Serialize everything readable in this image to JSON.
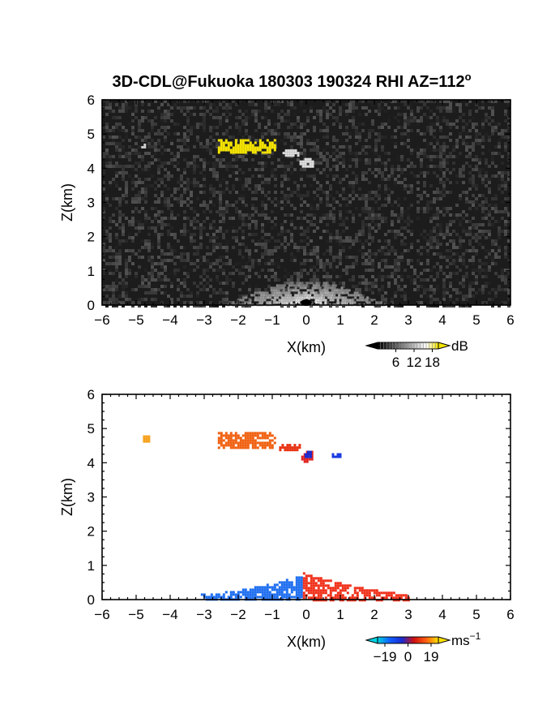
{
  "title": {
    "main": "3D-CDL@Fukuoka 180303 190324 RHI AZ=112",
    "superscript": "o"
  },
  "chart_data": [
    {
      "type": "heatmap",
      "title": "",
      "xlabel": "X(km)",
      "ylabel": "Z(km)",
      "xlim": [
        -6,
        6
      ],
      "ylim": [
        0,
        6
      ],
      "x_ticks": [
        "-6",
        "-5",
        "-4",
        "-3",
        "-2",
        "-1",
        "0",
        "1",
        "2",
        "3",
        "4",
        "5",
        "6"
      ],
      "y_ticks": [
        "0",
        "1",
        "2",
        "3",
        "4",
        "5",
        "6"
      ],
      "background": "noisy dark grey (low SNR everywhere)",
      "features": [
        {
          "kind": "strong echo",
          "color": "#f5e400",
          "x_range": [
            -2.6,
            -0.9
          ],
          "z_range": [
            4.45,
            4.85
          ]
        },
        {
          "kind": "weak echo",
          "color": "#dddddd",
          "x_range": [
            -0.7,
            -0.2
          ],
          "z_range": [
            4.4,
            4.55
          ]
        },
        {
          "kind": "weak echo",
          "color": "#e0e0e0",
          "x_range": [
            -0.2,
            0.2
          ],
          "z_range": [
            4.05,
            4.3
          ]
        },
        {
          "kind": "weak echo",
          "color": "#cfcfcf",
          "x_range": [
            -4.85,
            -4.75
          ],
          "z_range": [
            4.62,
            4.72
          ]
        },
        {
          "kind": "near-ground return",
          "color": "#e6e6e6",
          "x_range": [
            -2.4,
            2.4
          ],
          "z_range": [
            0.0,
            0.75
          ]
        }
      ],
      "colorbar": {
        "label": "dB",
        "tick_labels": [
          "6",
          "12",
          "18"
        ],
        "ticks": [
          6,
          12,
          18
        ],
        "range": [
          0,
          20
        ],
        "colors": [
          "#000000",
          "#3a3a3a",
          "#7a7a7a",
          "#bdbdbd",
          "#ffffff",
          "#f5e400"
        ]
      },
      "grid": false
    },
    {
      "type": "heatmap",
      "title": "",
      "xlabel": "X(km)",
      "ylabel": "Z(km)",
      "xlim": [
        -6,
        6
      ],
      "ylim": [
        0,
        6
      ],
      "x_ticks": [
        "-6",
        "-5",
        "-4",
        "-3",
        "-2",
        "-1",
        "0",
        "1",
        "2",
        "3",
        "4",
        "5",
        "6"
      ],
      "y_ticks": [
        "0",
        "1",
        "2",
        "3",
        "4",
        "5",
        "6"
      ],
      "background": "white (no data)",
      "features": [
        {
          "kind": "velocity cluster",
          "color": "#f5a01a",
          "x_range": [
            -4.8,
            -4.6
          ],
          "z_range": [
            4.6,
            4.8
          ]
        },
        {
          "kind": "velocity cluster",
          "color": "#f06010",
          "x_range": [
            -2.6,
            -0.9
          ],
          "z_range": [
            4.45,
            4.9
          ]
        },
        {
          "kind": "velocity cluster",
          "color": "#e83010",
          "x_range": [
            -0.8,
            -0.2
          ],
          "z_range": [
            4.4,
            4.55
          ]
        },
        {
          "kind": "velocity cluster",
          "color": "#e02020",
          "x_range": [
            -0.15,
            0.2
          ],
          "z_range": [
            4.0,
            4.35
          ]
        },
        {
          "kind": "velocity cluster",
          "color": "#1a2ad0",
          "x_range": [
            -0.05,
            0.1
          ],
          "z_range": [
            4.15,
            4.35
          ]
        },
        {
          "kind": "velocity cluster",
          "color": "#1a3ae0",
          "x_range": [
            0.75,
            1.0
          ],
          "z_range": [
            4.2,
            4.28
          ]
        },
        {
          "kind": "approaching flow",
          "color": "#1e6ef0",
          "x_range": [
            -3.1,
            -0.1
          ],
          "z_range": [
            0.0,
            0.75
          ]
        },
        {
          "kind": "receding flow",
          "color": "#f0301a",
          "x_range": [
            -0.1,
            3.0
          ],
          "z_range": [
            0.0,
            0.8
          ]
        }
      ],
      "colorbar": {
        "label": "ms",
        "label_superscript": "-1",
        "tick_labels": [
          "-19",
          "0",
          "19"
        ],
        "ticks": [
          -19,
          0,
          19
        ],
        "range": [
          -25,
          25
        ],
        "colors": [
          "#00d0e0",
          "#1060ff",
          "#1a2ad0",
          "#d01010",
          "#ff6010",
          "#ffe000"
        ]
      },
      "grid": false
    }
  ]
}
